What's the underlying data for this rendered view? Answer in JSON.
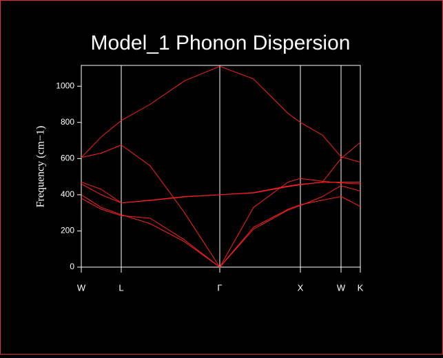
{
  "chart_data": {
    "type": "line",
    "title": "Model_1 Phonon Dispersion",
    "y_label": "Frequency (cm−1)",
    "x": [
      0,
      0.29,
      0.58,
      1.0,
      1.5,
      2.01,
      2.5,
      3.0,
      3.18,
      3.5,
      3.77,
      4.05
    ],
    "xlim": [
      0,
      4.05
    ],
    "xticks": [
      {
        "value": 0,
        "label": "W"
      },
      {
        "value": 0.58,
        "label": "L"
      },
      {
        "value": 2.01,
        "label": "Γ"
      },
      {
        "value": 3.18,
        "label": "X"
      },
      {
        "value": 3.77,
        "label": "W"
      },
      {
        "value": 4.05,
        "label": "K"
      }
    ],
    "ylim": [
      0,
      1115
    ],
    "yticks": [
      0,
      200,
      400,
      600,
      800,
      1000
    ],
    "series": [
      {
        "color": "#ff2020",
        "values": [
          606,
          720,
          810,
          900,
          1030,
          1110,
          1040,
          850,
          800,
          730,
          610,
          580
        ]
      },
      {
        "color": "#ff2020",
        "values": [
          606,
          630,
          675,
          560,
          300,
          0,
          330,
          470,
          490,
          475,
          465,
          460
        ]
      },
      {
        "color": "#ff2020",
        "values": [
          460,
          400,
          355,
          370,
          390,
          400,
          410,
          445,
          455,
          470,
          600,
          690
        ]
      },
      {
        "color": "#ff2020",
        "values": [
          470,
          430,
          355,
          368,
          388,
          400,
          412,
          448,
          458,
          468,
          470,
          470
        ]
      },
      {
        "color": "#ff2020",
        "values": [
          400,
          330,
          290,
          240,
          140,
          0,
          220,
          320,
          345,
          370,
          390,
          335
        ]
      },
      {
        "color": "#ff2020",
        "values": [
          380,
          320,
          285,
          270,
          150,
          0,
          210,
          315,
          340,
          390,
          450,
          420
        ]
      }
    ]
  }
}
